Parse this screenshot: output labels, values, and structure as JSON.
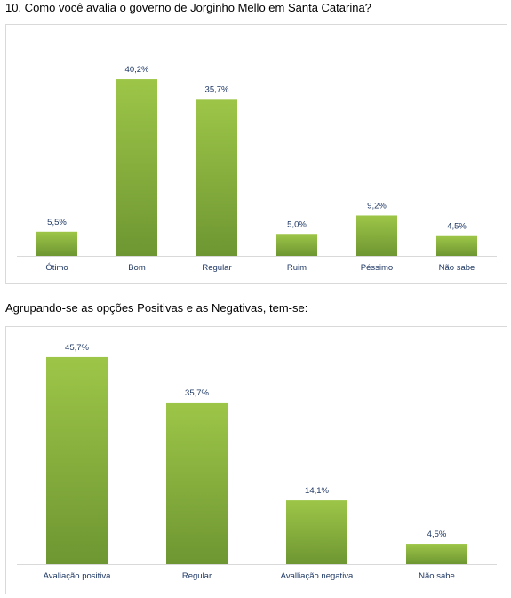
{
  "page": {
    "question_title": "10. Como você avalia o governo de Jorginho Mello em Santa Catarina?",
    "grouping_title": "Agrupando-se as opções Positivas e as Negativas, tem-se:"
  },
  "colors": {
    "bar_top": "#9dc648",
    "bar_bottom": "#6e9632",
    "label": "#1f3864",
    "axis": "#d9d9d9"
  },
  "chart_data": [
    {
      "type": "bar",
      "title": "",
      "xlabel": "",
      "ylabel": "",
      "categories": [
        "Ótimo",
        "Bom",
        "Regular",
        "Ruim",
        "Péssimo",
        "Não sabe"
      ],
      "values": [
        5.5,
        40.2,
        35.7,
        5.0,
        9.2,
        4.5
      ],
      "value_labels": [
        "5,5%",
        "40,2%",
        "35,7%",
        "5,0%",
        "9,2%",
        "4,5%"
      ],
      "ylim": [
        0,
        45
      ],
      "grid": false,
      "legend": "none"
    },
    {
      "type": "bar",
      "title": "",
      "xlabel": "",
      "ylabel": "",
      "categories": [
        "Avaliação positiva",
        "Regular",
        "Avalliação negativa",
        "Não sabe"
      ],
      "values": [
        45.7,
        35.7,
        14.1,
        4.5
      ],
      "value_labels": [
        "45,7%",
        "35,7%",
        "14,1%",
        "4,5%"
      ],
      "ylim": [
        0,
        50
      ],
      "grid": false,
      "legend": "none"
    }
  ]
}
